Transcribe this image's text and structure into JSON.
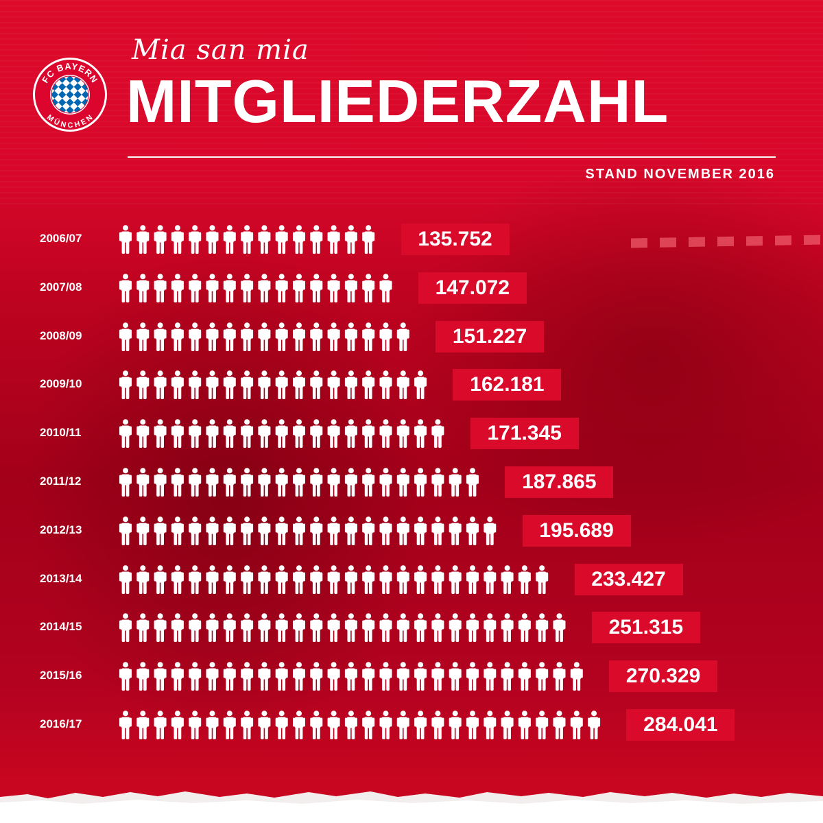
{
  "header": {
    "tagline": "Mia san mia",
    "title": "MITGLIEDERZAHL",
    "stand": "STAND NOVEMBER 2016",
    "logo_text_top": "FC BAYERN",
    "logo_text_bottom": "MÜNCHEN"
  },
  "colors": {
    "brand_red": "#dc052d",
    "value_box": "#d90a2a",
    "logo_blue": "#0066b2",
    "text": "#ffffff"
  },
  "icons": {
    "member": "person-icon",
    "logo": "fc-bayern-logo"
  },
  "chart_data": {
    "type": "table",
    "title": "MITGLIEDERZAHL",
    "subtitle": "STAND NOVEMBER 2016",
    "rows": [
      {
        "season": "2006/07",
        "value": 135752,
        "label": "135.752",
        "icons": 15
      },
      {
        "season": "2007/08",
        "value": 147072,
        "label": "147.072",
        "icons": 16
      },
      {
        "season": "2008/09",
        "value": 151227,
        "label": "151.227",
        "icons": 17
      },
      {
        "season": "2009/10",
        "value": 162181,
        "label": "162.181",
        "icons": 18
      },
      {
        "season": "2010/11",
        "value": 171345,
        "label": "171.345",
        "icons": 19
      },
      {
        "season": "2011/12",
        "value": 187865,
        "label": "187.865",
        "icons": 21
      },
      {
        "season": "2012/13",
        "value": 195689,
        "label": "195.689",
        "icons": 22
      },
      {
        "season": "2013/14",
        "value": 233427,
        "label": "233.427",
        "icons": 25
      },
      {
        "season": "2014/15",
        "value": 251315,
        "label": "251.315",
        "icons": 26
      },
      {
        "season": "2015/16",
        "value": 270329,
        "label": "270.329",
        "icons": 27
      },
      {
        "season": "2016/17",
        "value": 284041,
        "label": "284.041",
        "icons": 28
      }
    ]
  }
}
